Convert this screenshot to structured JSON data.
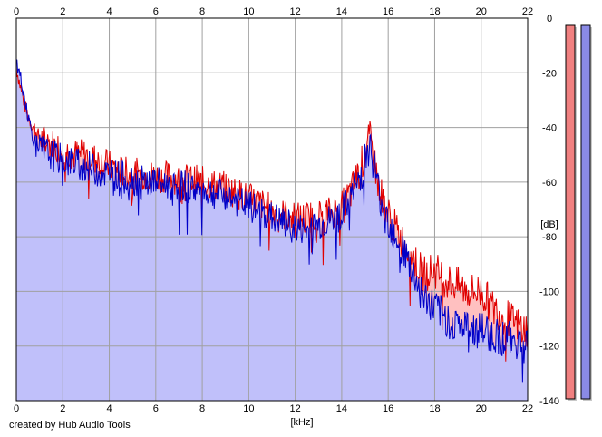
{
  "credit": "created by Hub Audio Tools",
  "chart_data": {
    "type": "area",
    "xlabel": "[kHz]",
    "ylabel": "[dB]",
    "xlim": [
      0,
      22
    ],
    "ylim": [
      -140,
      0
    ],
    "x_ticks": [
      "0",
      "2",
      "4",
      "6",
      "8",
      "10",
      "12",
      "14",
      "16",
      "18",
      "20",
      "22"
    ],
    "y_ticks": [
      "0",
      "-20",
      "-40",
      "-60",
      "-80",
      "-100",
      "-120",
      "-140"
    ],
    "grid": true,
    "legend": "none",
    "colors": {
      "left_line": "#e00000",
      "left_fill": "#ffc0c0",
      "right_line": "#0000c8",
      "right_fill": "#c0c0fa",
      "grid": "#a0a0a0",
      "meter_left": "#f08080",
      "meter_right": "#8a8ae6"
    },
    "series": [
      {
        "channel": "left",
        "x": [
          0,
          0.25,
          0.5,
          0.75,
          1,
          1.5,
          2,
          2.5,
          3,
          3.5,
          4,
          4.5,
          5,
          5.5,
          6,
          6.5,
          7,
          7.5,
          8,
          8.5,
          9,
          9.5,
          10,
          10.5,
          11,
          11.5,
          12,
          12.5,
          13,
          13.5,
          14,
          14.5,
          14.8,
          15,
          15.2,
          15.4,
          15.6,
          16,
          16.5,
          17,
          17.5,
          18,
          18.5,
          19,
          19.5,
          20,
          20.5,
          21,
          21.5,
          22
        ],
        "y": [
          -18,
          -28,
          -36,
          -40,
          -44,
          -46,
          -48,
          -50,
          -50,
          -52,
          -54,
          -56,
          -57,
          -57,
          -58,
          -58,
          -59,
          -59,
          -60,
          -61,
          -62,
          -64,
          -66,
          -68,
          -70,
          -72,
          -73,
          -73,
          -72,
          -71,
          -70,
          -62,
          -55,
          -50,
          -44,
          -52,
          -62,
          -72,
          -80,
          -86,
          -94,
          -92,
          -96,
          -98,
          -100,
          -100,
          -106,
          -109,
          -112,
          -114
        ]
      },
      {
        "channel": "right",
        "x": [
          0,
          0.25,
          0.5,
          0.75,
          1,
          1.5,
          2,
          2.5,
          3,
          3.5,
          4,
          4.5,
          5,
          5.5,
          6,
          6.5,
          7,
          7.5,
          8,
          8.5,
          9,
          9.5,
          10,
          10.5,
          11,
          11.5,
          12,
          12.5,
          13,
          13.5,
          14,
          14.5,
          14.8,
          15,
          15.2,
          15.4,
          15.6,
          16,
          16.5,
          17,
          17.5,
          18,
          18.5,
          19,
          19.5,
          20,
          20.5,
          21,
          21.5,
          22
        ],
        "y": [
          -16,
          -24,
          -36,
          -44,
          -48,
          -50,
          -52,
          -53,
          -54,
          -56,
          -57,
          -58,
          -59,
          -60,
          -60,
          -61,
          -61,
          -62,
          -63,
          -64,
          -65,
          -67,
          -69,
          -71,
          -73,
          -75,
          -77,
          -78,
          -76,
          -74,
          -72,
          -64,
          -58,
          -52,
          -46,
          -54,
          -64,
          -74,
          -82,
          -92,
          -102,
          -106,
          -110,
          -112,
          -114,
          -114,
          -116,
          -117,
          -118,
          -119
        ]
      }
    ],
    "meters": [
      {
        "channel": "left",
        "level": 1.0
      },
      {
        "channel": "right",
        "level": 1.0
      }
    ]
  }
}
